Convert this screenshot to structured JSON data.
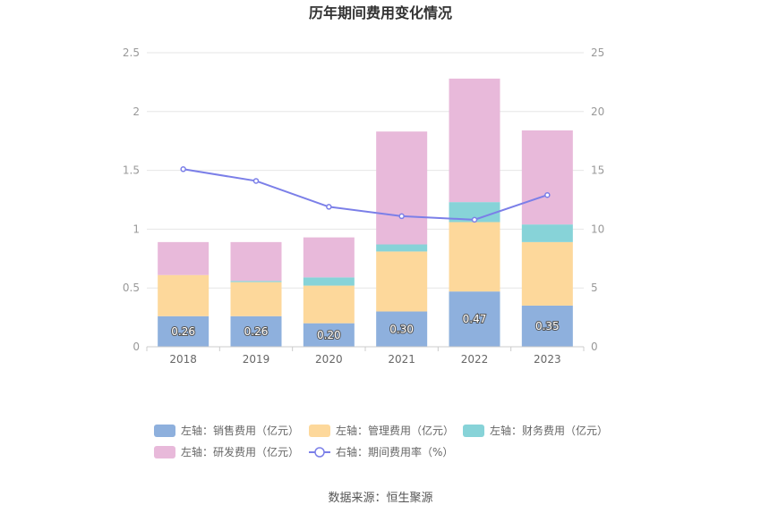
{
  "chart_data": {
    "type": "bar",
    "title": "历年期间费用变化情况",
    "categories": [
      "2018",
      "2019",
      "2020",
      "2021",
      "2022",
      "2023"
    ],
    "stacked": true,
    "left_axis": {
      "ylim": [
        0,
        2.5
      ],
      "ticks": [
        "0",
        "0.5",
        "1",
        "1.5",
        "2",
        "2.5"
      ]
    },
    "right_axis": {
      "ylim": [
        0,
        25
      ],
      "ticks": [
        "0",
        "5",
        "10",
        "15",
        "20",
        "25"
      ]
    },
    "series": [
      {
        "name": "左轴：销售费用（亿元）",
        "axis": "left",
        "type": "bar",
        "color": "#8eb0dd",
        "values": [
          0.26,
          0.26,
          0.2,
          0.3,
          0.47,
          0.35
        ],
        "labels": [
          "0.26",
          "0.26",
          "0.20",
          "0.30",
          "0.47",
          "0.35"
        ]
      },
      {
        "name": "左轴：管理费用（亿元）",
        "axis": "left",
        "type": "bar",
        "color": "#fdd89b",
        "values": [
          0.35,
          0.29,
          0.32,
          0.51,
          0.59,
          0.54
        ]
      },
      {
        "name": "左轴：财务费用（亿元）",
        "axis": "left",
        "type": "bar",
        "color": "#87d3d8",
        "values": [
          0.0,
          0.01,
          0.07,
          0.06,
          0.17,
          0.15
        ]
      },
      {
        "name": "左轴：研发费用（亿元）",
        "axis": "left",
        "type": "bar",
        "color": "#e8b9da",
        "values": [
          0.28,
          0.33,
          0.34,
          0.96,
          1.05,
          0.8
        ]
      },
      {
        "name": "右轴：期间费用率（%）",
        "axis": "right",
        "type": "line",
        "color": "#7b7fe8",
        "values": [
          15.1,
          14.1,
          11.9,
          11.1,
          10.8,
          12.9
        ]
      }
    ],
    "legend_position": "bottom",
    "grid": true
  },
  "source": "数据来源：恒生聚源"
}
